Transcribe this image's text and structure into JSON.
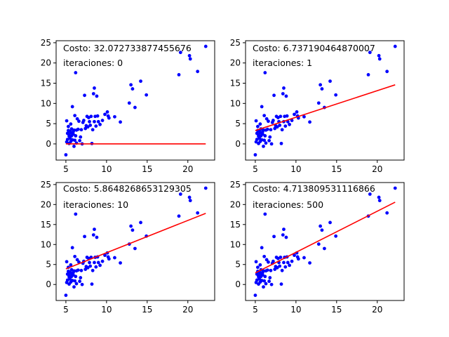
{
  "figure": {
    "background": "#ffffff",
    "point_color": "#0000ff",
    "line_color": "#ff0000"
  },
  "chart_data": [
    {
      "type": "scatter",
      "panel": "top-left",
      "annotations": {
        "cost": "Costo: 32.072733877455676",
        "iterations": "iteraciones: 0"
      },
      "xlim": [
        3.8,
        23.3
      ],
      "ylim": [
        -4,
        25.5
      ],
      "xticks": [
        5,
        10,
        15,
        20
      ],
      "yticks": [
        0,
        5,
        10,
        15,
        20,
        25
      ],
      "fit_line": {
        "x": [
          5.0,
          22.2
        ],
        "y": [
          0.0,
          0.0
        ]
      }
    },
    {
      "type": "scatter",
      "panel": "top-right",
      "annotations": {
        "cost": "Costo: 6.737190464870007",
        "iterations": "iteraciones: 1"
      },
      "xlim": [
        3.8,
        23.3
      ],
      "ylim": [
        -4,
        25.5
      ],
      "xticks": [
        5,
        10,
        15,
        20
      ],
      "yticks": [
        0,
        5,
        10,
        15,
        20,
        25
      ],
      "fit_line": {
        "x": [
          5.0,
          22.2
        ],
        "y": [
          3.3,
          14.6
        ]
      }
    },
    {
      "type": "scatter",
      "panel": "bottom-left",
      "annotations": {
        "cost": "Costo: 5.8648268653129305",
        "iterations": "iteraciones: 10"
      },
      "xlim": [
        3.8,
        23.3
      ],
      "ylim": [
        -4,
        25.5
      ],
      "xticks": [
        5,
        10,
        15,
        20
      ],
      "yticks": [
        0,
        5,
        10,
        15,
        20,
        25
      ],
      "fit_line": {
        "x": [
          5.0,
          22.2
        ],
        "y": [
          3.9,
          17.8
        ]
      }
    },
    {
      "type": "scatter",
      "panel": "bottom-right",
      "annotations": {
        "cost": "Costo: 4.713809531116866",
        "iterations": "iteraciones: 500"
      },
      "xlim": [
        3.8,
        23.3
      ],
      "ylim": [
        -4,
        25.5
      ],
      "xticks": [
        5,
        10,
        15,
        20
      ],
      "yticks": [
        0,
        5,
        10,
        15,
        20,
        25
      ],
      "fit_line": {
        "x": [
          5.0,
          22.2
        ],
        "y": [
          2.9,
          20.6
        ]
      }
    }
  ],
  "scatter_points": [
    [
      5.0,
      -2.7
    ],
    [
      5.1,
      5.7
    ],
    [
      5.1,
      0.5
    ],
    [
      5.2,
      2.6
    ],
    [
      5.2,
      1.1
    ],
    [
      5.3,
      3.3
    ],
    [
      5.3,
      4.3
    ],
    [
      5.4,
      1.9
    ],
    [
      5.4,
      0.1
    ],
    [
      5.4,
      2.2
    ],
    [
      5.5,
      3.1
    ],
    [
      5.5,
      1.4
    ],
    [
      5.6,
      2.8
    ],
    [
      5.6,
      0.6
    ],
    [
      5.6,
      4.9
    ],
    [
      5.7,
      3.7
    ],
    [
      5.7,
      2.0
    ],
    [
      5.8,
      9.2
    ],
    [
      5.8,
      1.0
    ],
    [
      5.9,
      2.4
    ],
    [
      5.9,
      3.0
    ],
    [
      6.0,
      3.4
    ],
    [
      6.0,
      -0.6
    ],
    [
      6.1,
      0.9
    ],
    [
      6.1,
      7.0
    ],
    [
      6.2,
      2.0
    ],
    [
      6.2,
      17.6
    ],
    [
      6.3,
      3.4
    ],
    [
      6.3,
      0.2
    ],
    [
      6.4,
      6.2
    ],
    [
      6.5,
      3.6
    ],
    [
      6.6,
      5.6
    ],
    [
      6.7,
      0.8
    ],
    [
      6.8,
      1.7
    ],
    [
      6.9,
      3.5
    ],
    [
      7.0,
      0.0
    ],
    [
      7.1,
      5.3
    ],
    [
      7.2,
      5.8
    ],
    [
      7.3,
      12.0
    ],
    [
      7.4,
      3.8
    ],
    [
      7.5,
      4.5
    ],
    [
      7.6,
      6.8
    ],
    [
      7.7,
      4.2
    ],
    [
      7.8,
      6.5
    ],
    [
      7.9,
      5.5
    ],
    [
      8.0,
      4.6
    ],
    [
      8.1,
      6.8
    ],
    [
      8.2,
      0.1
    ],
    [
      8.3,
      3.5
    ],
    [
      8.4,
      12.4
    ],
    [
      8.5,
      5.5
    ],
    [
      8.5,
      13.8
    ],
    [
      8.6,
      6.8
    ],
    [
      8.7,
      4.4
    ],
    [
      8.8,
      11.8
    ],
    [
      8.9,
      6.9
    ],
    [
      9.0,
      5.5
    ],
    [
      9.2,
      4.8
    ],
    [
      9.5,
      5.8
    ],
    [
      9.8,
      7.3
    ],
    [
      10.1,
      7.9
    ],
    [
      10.2,
      6.9
    ],
    [
      10.3,
      6.4
    ],
    [
      11.0,
      6.7
    ],
    [
      11.7,
      5.4
    ],
    [
      12.8,
      10.1
    ],
    [
      13.0,
      14.6
    ],
    [
      13.2,
      13.6
    ],
    [
      13.5,
      9.0
    ],
    [
      14.2,
      15.5
    ],
    [
      14.9,
      12.1
    ],
    [
      18.9,
      17.1
    ],
    [
      19.1,
      22.6
    ],
    [
      20.2,
      21.8
    ],
    [
      20.3,
      21.0
    ],
    [
      21.2,
      17.9
    ],
    [
      22.2,
      24.1
    ]
  ]
}
